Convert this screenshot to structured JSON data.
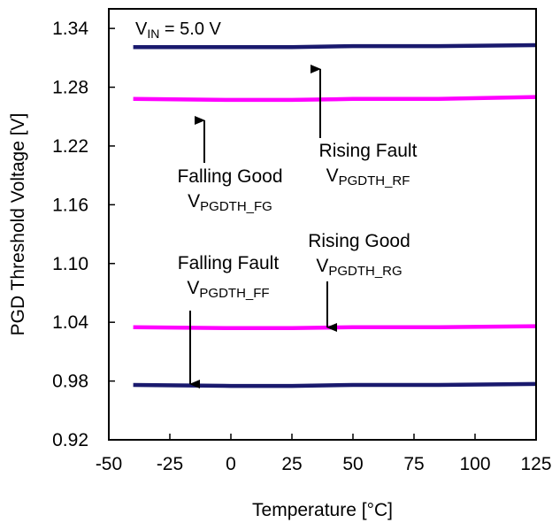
{
  "chart_data": {
    "type": "line",
    "xlabel": "Temperature [°C]",
    "ylabel": "PGD Threshold Voltage [V]",
    "xlim": [
      -50,
      125
    ],
    "ylim": [
      0.92,
      1.36
    ],
    "x_ticks": [
      "-50",
      "-25",
      "0",
      "25",
      "50",
      "75",
      "100",
      "125"
    ],
    "y_ticks": [
      "0.92",
      "0.98",
      "1.04",
      "1.10",
      "1.16",
      "1.22",
      "1.28",
      "1.34"
    ],
    "grid": false,
    "condition": {
      "main": "V",
      "sub": "IN",
      "rest": " = 5.0 V"
    },
    "series": [
      {
        "color": "#1a1a6e",
        "x": [
          -40,
          0,
          25,
          50,
          85,
          125
        ],
        "y": [
          1.321,
          1.321,
          1.321,
          1.322,
          1.322,
          1.323
        ]
      },
      {
        "color": "#ff00ff",
        "x": [
          -40,
          0,
          25,
          50,
          85,
          125
        ],
        "y": [
          1.268,
          1.267,
          1.267,
          1.268,
          1.268,
          1.27
        ]
      },
      {
        "color": "#ff00ff",
        "x": [
          -40,
          0,
          25,
          50,
          85,
          125
        ],
        "y": [
          1.035,
          1.034,
          1.034,
          1.035,
          1.035,
          1.036
        ]
      },
      {
        "color": "#1a1a6e",
        "x": [
          -40,
          0,
          25,
          50,
          85,
          125
        ],
        "y": [
          0.976,
          0.975,
          0.975,
          0.976,
          0.976,
          0.977
        ]
      }
    ],
    "annotations": [
      {
        "id": "rising-fault",
        "title": "Rising Fault",
        "main": "V",
        "sub": "PGDTH_RF"
      },
      {
        "id": "falling-good",
        "title": "Falling Good",
        "main": "V",
        "sub": "PGDTH_FG"
      },
      {
        "id": "rising-good",
        "title": "Rising Good",
        "main": "V",
        "sub": "PGDTH_RG"
      },
      {
        "id": "falling-fault",
        "title": "Falling Fault",
        "main": "V",
        "sub": "PGDTH_FF"
      }
    ]
  }
}
